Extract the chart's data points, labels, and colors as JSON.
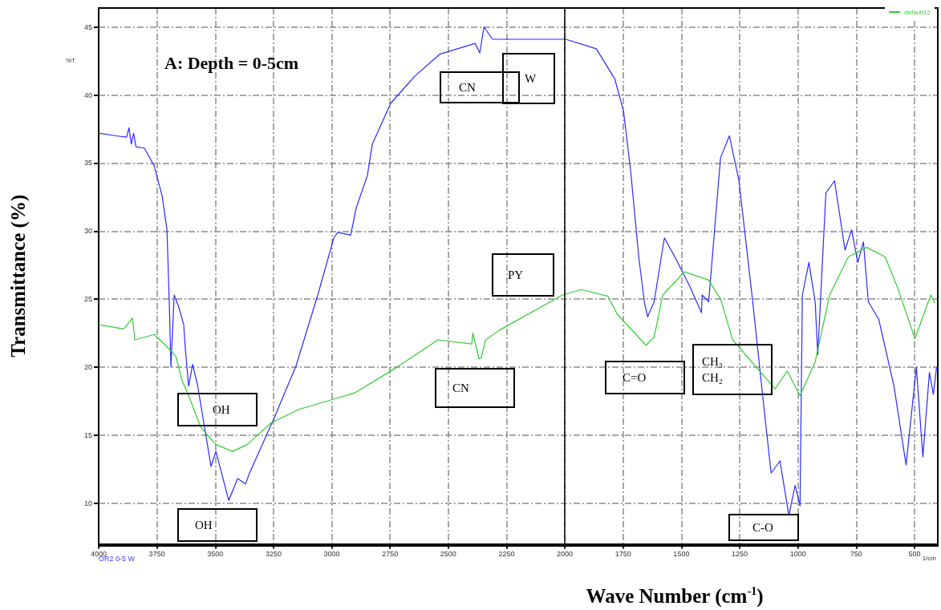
{
  "chart_data": {
    "type": "line",
    "title": "A: Depth = 0-5cm",
    "xlabel": "Wave Number (cm$^{-1}$)",
    "ylabel": "Transmittance (%)",
    "xlim": [
      4000,
      400
    ],
    "xticks": [
      4000,
      3750,
      3500,
      3250,
      3000,
      2750,
      2500,
      2250,
      2000,
      1750,
      1500,
      1250,
      1000,
      750,
      500
    ],
    "ylim": [
      7,
      46.4
    ],
    "yticks": [
      10,
      15,
      20,
      25,
      30,
      35,
      40,
      45
    ],
    "grid": true,
    "legend": "top right",
    "marker": "none",
    "line_style": "solid",
    "ref_lines": [
      {
        "axis": "x",
        "value": 2000,
        "color": "#000000"
      }
    ],
    "annotations": [
      "%T",
      "OR2 0-5 W",
      "1/cm",
      "CN",
      "W",
      "PY",
      "CN",
      "OH",
      "OH",
      "C=O",
      "CH₃\nCH₂",
      "C-O"
    ],
    "series": [
      {
        "color": "#2a2aff",
        "x": [
          4000,
          3924,
          3880,
          3870,
          3860,
          3850,
          3840,
          3804,
          3762,
          3728,
          3707,
          3697,
          3690,
          3676,
          3656,
          3635,
          3628,
          3614,
          3597,
          3576,
          3549,
          3518,
          3497,
          3442,
          3404,
          3370,
          3353,
          3246,
          3153,
          3060,
          2991,
          2974,
          2919,
          2895,
          2847,
          2826,
          2747,
          2643,
          2537,
          2385,
          2365,
          2347,
          2310,
          1996,
          1865,
          1786,
          1748,
          1717,
          1683,
          1659,
          1645,
          1617,
          1573,
          1528,
          1463,
          1414,
          1411,
          1383,
          1332,
          1294,
          1253,
          1194,
          1142,
          1115,
          1077,
          1039,
          1012,
          991,
          981,
          953,
          926,
          915,
          880,
          843,
          798,
          770,
          743,
          719,
          698,
          653,
          588,
          536,
          492,
          464,
          436,
          419,
          405
        ],
        "values": [
          37.2,
          37.0,
          36.9,
          37.6,
          36.4,
          37.2,
          36.2,
          36.1,
          34.8,
          32.6,
          30.1,
          24.7,
          20.0,
          25.3,
          24.4,
          23.1,
          21.3,
          18.6,
          20.2,
          18.7,
          15.9,
          12.7,
          13.8,
          10.2,
          11.8,
          11.4,
          12.2,
          16.3,
          20.1,
          25.3,
          29.5,
          29.9,
          29.7,
          31.7,
          34.1,
          36.4,
          39.4,
          41.4,
          43.0,
          43.8,
          43.1,
          45.0,
          44.1,
          44.1,
          43.4,
          41.2,
          38.8,
          34.3,
          28.1,
          24.8,
          23.7,
          24.8,
          29.5,
          28.1,
          25.9,
          24.0,
          25.3,
          24.8,
          35.4,
          37.0,
          33.7,
          24.8,
          16.4,
          12.2,
          13.1,
          9.1,
          11.3,
          9.8,
          25.3,
          27.7,
          24.8,
          20.9,
          32.8,
          33.7,
          28.6,
          30.1,
          27.7,
          29.2,
          24.8,
          23.5,
          18.6,
          12.8,
          20.0,
          13.4,
          19.6,
          18.0,
          20.0
        ]
      },
      {
        "name": "default12",
        "color": "#33cc33",
        "x": [
          3993,
          3893,
          3855,
          3845,
          3762,
          3707,
          3669,
          3642,
          3614,
          3563,
          3497,
          3425,
          3363,
          3260,
          3139,
          2981,
          2902,
          2729,
          2544,
          2399,
          2395,
          2368,
          2358,
          2340,
          2282,
          2010,
          1931,
          1814,
          1776,
          1652,
          1617,
          1580,
          1487,
          1383,
          1332,
          1280,
          1098,
          1046,
          991,
          926,
          864,
          784,
          705,
          626,
          574,
          498,
          430,
          413
        ],
        "values": [
          23.1,
          22.8,
          23.6,
          22.0,
          22.4,
          21.5,
          20.8,
          19.0,
          17.9,
          15.6,
          14.3,
          13.8,
          14.3,
          15.9,
          16.9,
          17.7,
          18.1,
          19.9,
          22.0,
          21.7,
          22.5,
          20.6,
          20.7,
          22.0,
          22.7,
          25.3,
          25.7,
          25.2,
          23.9,
          21.6,
          22.2,
          25.3,
          27.0,
          26.4,
          25.0,
          22.0,
          18.4,
          19.7,
          17.9,
          20.4,
          25.3,
          28.1,
          28.8,
          28.1,
          25.9,
          22.1,
          25.3,
          24.7
        ]
      }
    ]
  }
}
